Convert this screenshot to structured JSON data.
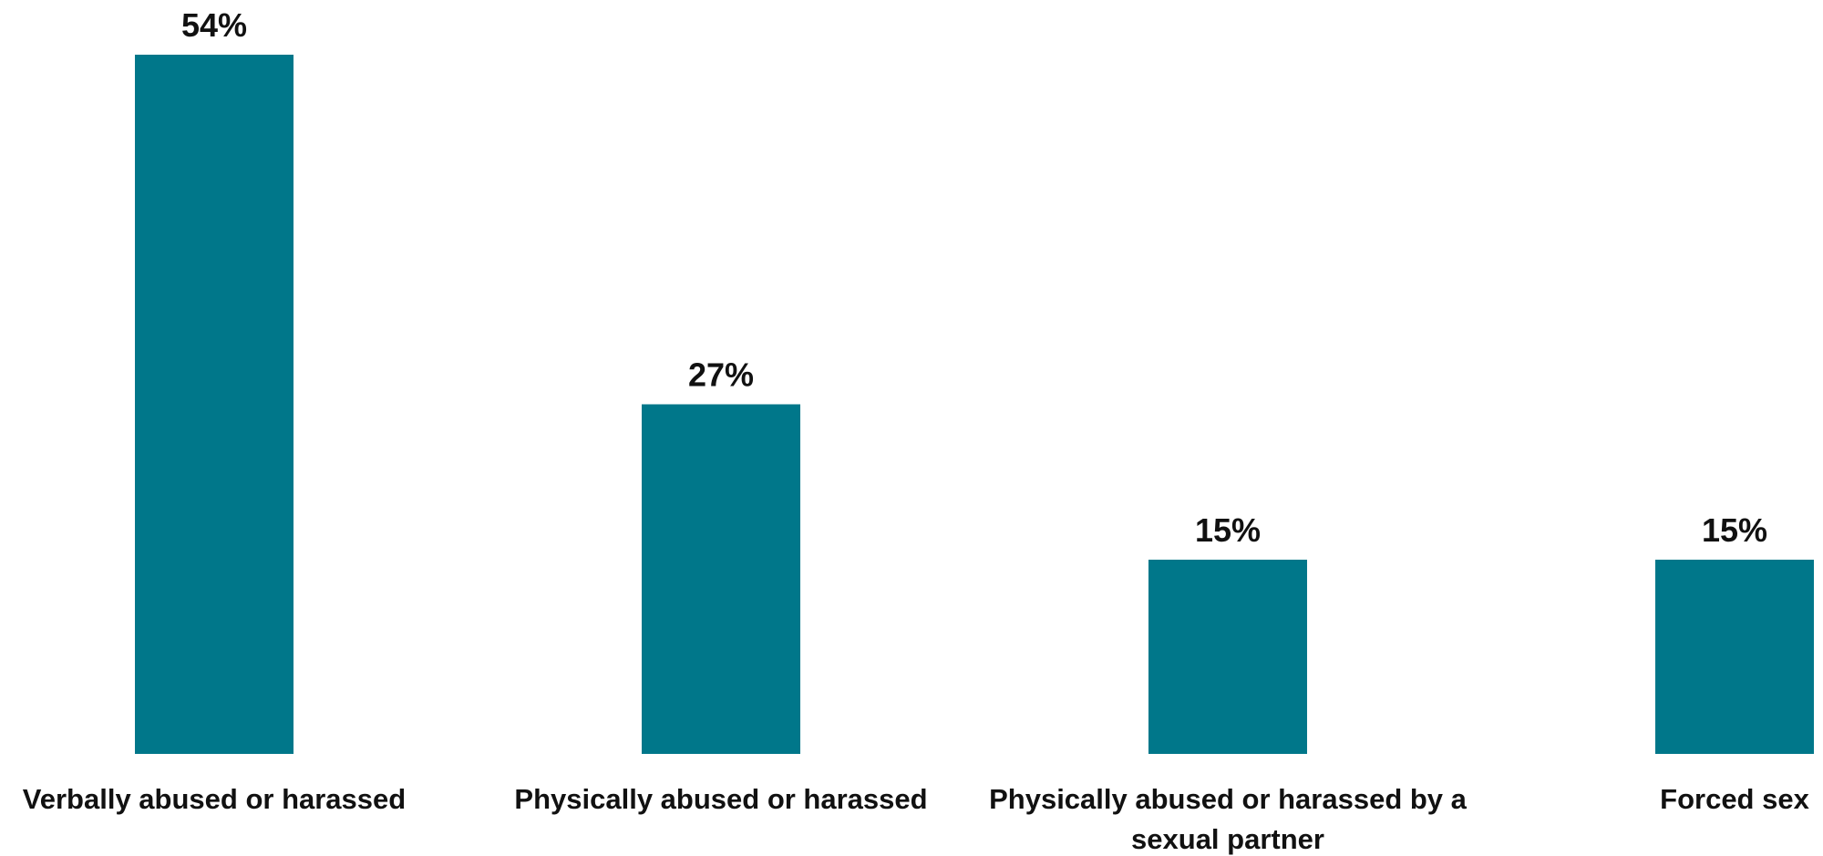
{
  "chart_data": {
    "type": "bar",
    "categories": [
      "Verbally abused or harassed",
      "Physically abused or harassed",
      "Physically abused or harassed by a sexual partner",
      "Forced sex"
    ],
    "category_label_lines": [
      [
        "Verbally abused or harassed"
      ],
      [
        "Physically abused or harassed"
      ],
      [
        "Physically abused or harassed by a",
        "sexual partner"
      ],
      [
        "Forced sex"
      ]
    ],
    "values": [
      54,
      27,
      15,
      15
    ],
    "value_labels": [
      "54%",
      "27%",
      "15%",
      "15%"
    ],
    "ylim": [
      0,
      54
    ],
    "grid": false,
    "bar_color": "#00778A"
  }
}
